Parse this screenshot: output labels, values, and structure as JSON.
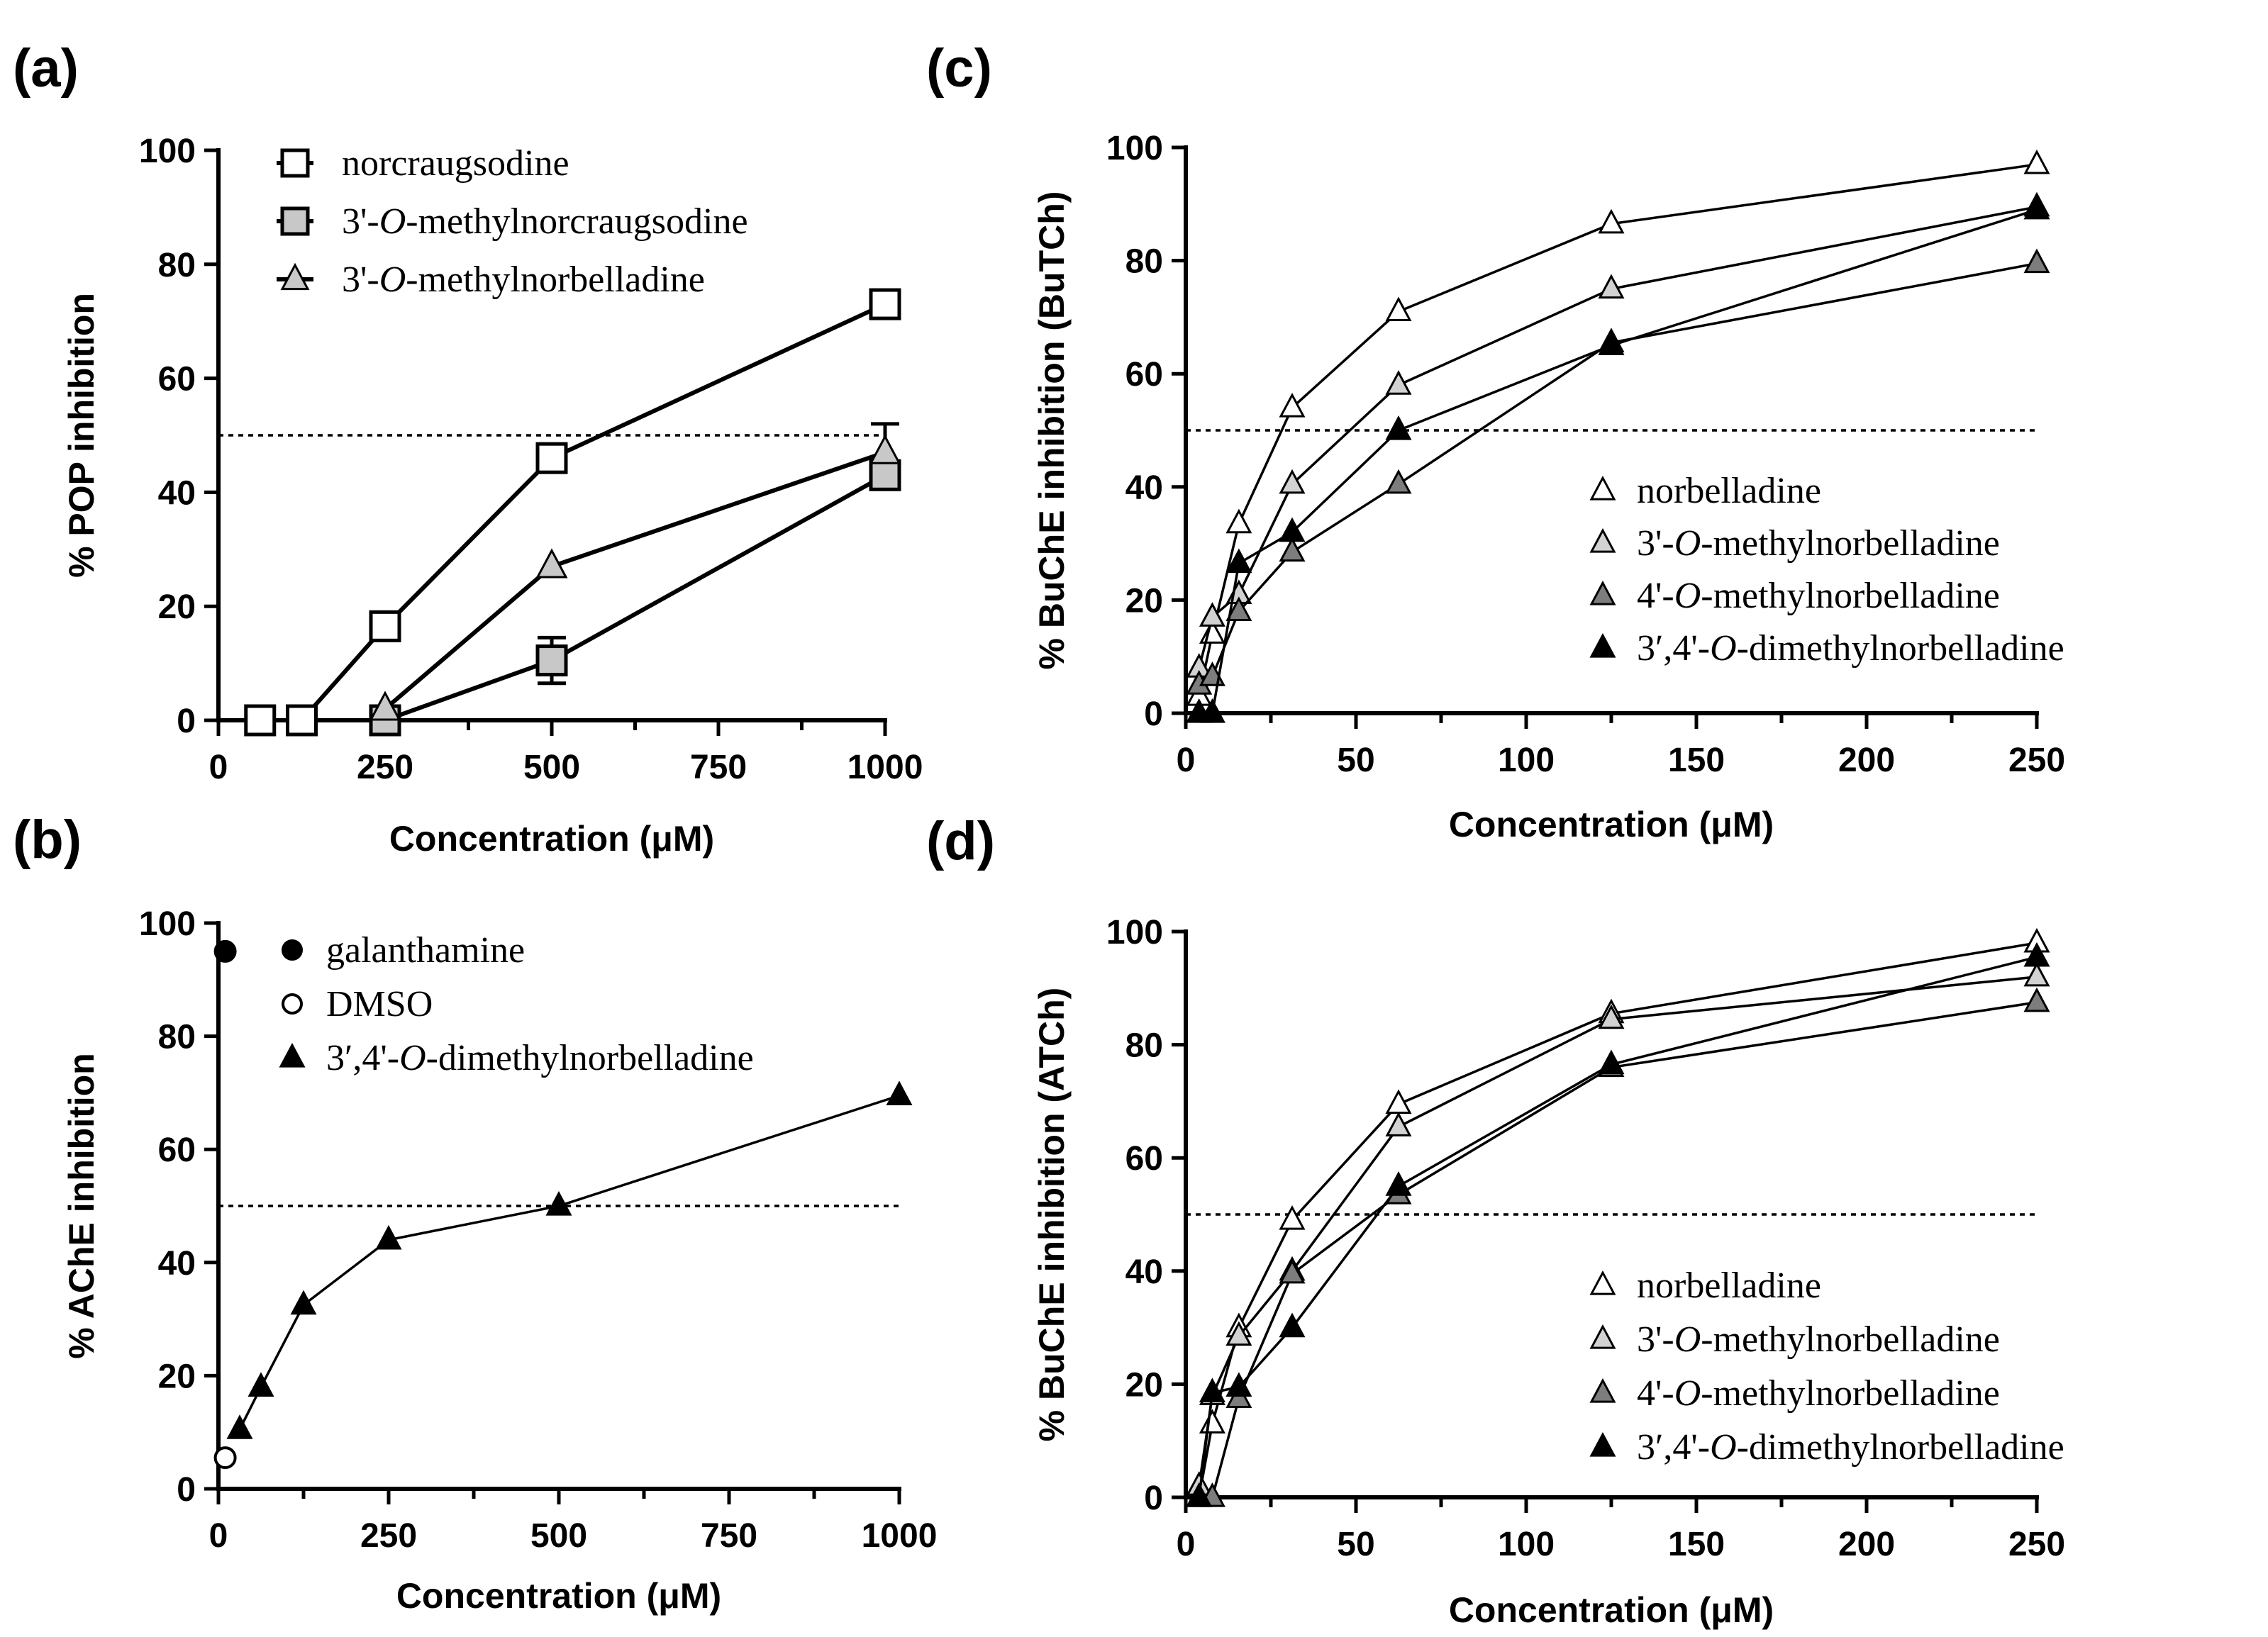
{
  "chart_data": [
    {
      "id": "a",
      "panel_label": "(a)",
      "type": "line",
      "xlabel": "Concentration (μM)",
      "ylabel": "% POP inhibition",
      "xlim": [
        0,
        1000
      ],
      "ylim": [
        0,
        100
      ],
      "xticks": [
        0,
        250,
        500,
        750,
        1000
      ],
      "yticks": [
        0,
        20,
        40,
        60,
        80,
        100
      ],
      "xtick_labels": [
        "0",
        "250",
        "500",
        "750",
        "1000"
      ],
      "ytick_labels": [
        "0",
        "20",
        "40",
        "60",
        "80",
        "100"
      ],
      "reference_line": 50,
      "legend_position": "top-left",
      "series": [
        {
          "name": "norcraugsodine",
          "legend": [
            "norcraugsodine"
          ],
          "marker": "square",
          "fill": "#ffffff",
          "x": [
            62.5,
            125,
            250,
            500,
            1000
          ],
          "y": [
            0,
            0,
            16.5,
            46,
            73
          ],
          "err": [
            0,
            0,
            0,
            0,
            0
          ]
        },
        {
          "name": "3'-O-methylnorcraugsodine",
          "legend": [
            "3'-",
            "O",
            "-methylnorcraugsodine"
          ],
          "marker": "square",
          "fill": "#c8c8c8",
          "x": [
            250,
            500,
            1000
          ],
          "y": [
            0,
            10.5,
            43
          ],
          "err": [
            0,
            4,
            0
          ]
        },
        {
          "name": "3'-O-methylnorbelladine",
          "legend": [
            "3'-",
            "O",
            "-methylnorbelladine"
          ],
          "marker": "triangle",
          "fill": "#c8c8c8",
          "x": [
            250,
            500,
            1000
          ],
          "y": [
            2,
            27,
            47
          ],
          "err": [
            0,
            0,
            5
          ]
        }
      ]
    },
    {
      "id": "b",
      "panel_label": "(b)",
      "type": "line",
      "xlabel": "Concentration (μM)",
      "ylabel": "% AChE inhibition",
      "xlim": [
        0,
        1000
      ],
      "ylim": [
        0,
        100
      ],
      "xticks": [
        0,
        250,
        500,
        750,
        1000
      ],
      "yticks": [
        0,
        20,
        40,
        60,
        80,
        100
      ],
      "xtick_labels": [
        "0",
        "250",
        "500",
        "750",
        "1000"
      ],
      "ytick_labels": [
        "0",
        "20",
        "40",
        "60",
        "80",
        "100"
      ],
      "reference_line": 50,
      "legend_position": "top-left",
      "series": [
        {
          "name": "galanthamine",
          "legend": [
            "galanthamine"
          ],
          "marker": "circle",
          "fill": "#000000",
          "line": false,
          "x": [
            10
          ],
          "y": [
            95
          ]
        },
        {
          "name": "DMSO",
          "legend": [
            "DMSO"
          ],
          "marker": "circle",
          "fill": "#ffffff",
          "line": false,
          "x": [
            10
          ],
          "y": [
            5.5
          ]
        },
        {
          "name": "3′,4'-O-dimethylnorbelladine",
          "legend": [
            "3′,4'-",
            "O",
            "-dimethylnorbelladine"
          ],
          "marker": "triangle",
          "fill": "#000000",
          "x": [
            31.25,
            62.5,
            125,
            250,
            500,
            1000
          ],
          "y": [
            10.5,
            18,
            32.5,
            44,
            50,
            69.5
          ]
        }
      ]
    },
    {
      "id": "c",
      "panel_label": "(c)",
      "type": "line",
      "xlabel": "Concentration (μM)",
      "ylabel": "% BuChE inhibition (BuTCh)",
      "xlim": [
        0,
        250
      ],
      "ylim": [
        0,
        100
      ],
      "xticks": [
        0,
        50,
        100,
        150,
        200,
        250
      ],
      "yticks": [
        0,
        20,
        40,
        60,
        80,
        100
      ],
      "xtick_labels": [
        "0",
        "50",
        "100",
        "150",
        "200",
        "250"
      ],
      "ytick_labels": [
        "0",
        "20",
        "40",
        "60",
        "80",
        "100"
      ],
      "reference_line": 50,
      "legend_position": "bottom-right",
      "series": [
        {
          "name": "norbelladine",
          "legend": [
            "norbelladine"
          ],
          "marker": "triangle",
          "fill": "#ffffff",
          "x": [
            3.9,
            7.8,
            15.6,
            31.25,
            62.5,
            125,
            250
          ],
          "y": [
            3,
            14,
            33.5,
            54,
            71,
            86.5,
            97
          ]
        },
        {
          "name": "3'-O-methylnorbelladine",
          "legend": [
            "3'-",
            "O",
            "-methylnorbelladine"
          ],
          "marker": "triangle",
          "fill": "#d2d2d2",
          "x": [
            3.9,
            7.8,
            15.6,
            31.25,
            62.5,
            125,
            250
          ],
          "y": [
            8,
            17,
            21,
            40.5,
            58,
            75,
            89.5
          ]
        },
        {
          "name": "4'-O-methylnorbelladine",
          "legend": [
            "4'-",
            "O",
            "-methylnorbelladine"
          ],
          "marker": "triangle",
          "fill": "#7d7d7d",
          "x": [
            3.9,
            7.8,
            15.6,
            31.25,
            62.5,
            125,
            250
          ],
          "y": [
            5,
            6.5,
            18,
            28.5,
            40.5,
            65.5,
            79.5
          ]
        },
        {
          "name": "3′,4'-O-dimethylnorbelladine",
          "legend": [
            "3′,4'-",
            "O",
            "-dimethylnorbelladine"
          ],
          "marker": "triangle",
          "fill": "#000000",
          "x": [
            3.9,
            7.8,
            15.6,
            31.25,
            62.5,
            125,
            250
          ],
          "y": [
            0,
            0,
            26.5,
            32,
            50,
            65,
            89
          ]
        }
      ]
    },
    {
      "id": "d",
      "panel_label": "(d)",
      "type": "line",
      "xlabel": "Concentration (μM)",
      "ylabel": "% BuChE inhibition (ATCh)",
      "xlim": [
        0,
        250
      ],
      "ylim": [
        0,
        100
      ],
      "xticks": [
        0,
        50,
        100,
        150,
        200,
        250
      ],
      "yticks": [
        0,
        20,
        40,
        60,
        80,
        100
      ],
      "xtick_labels": [
        "0",
        "50",
        "100",
        "150",
        "200",
        "250"
      ],
      "ytick_labels": [
        "0",
        "20",
        "40",
        "60",
        "80",
        "100"
      ],
      "reference_line": 50,
      "legend_position": "bottom-right",
      "series": [
        {
          "name": "norbelladine",
          "legend": [
            "norbelladine"
          ],
          "marker": "triangle",
          "fill": "#ffffff",
          "x": [
            3.9,
            7.8,
            15.6,
            31.25,
            62.5,
            125,
            250
          ],
          "y": [
            0,
            13,
            30,
            49,
            69.5,
            85.5,
            98
          ]
        },
        {
          "name": "3'-O-methylnorbelladine",
          "legend": [
            "3'-",
            "O",
            "-methylnorbelladine"
          ],
          "marker": "triangle",
          "fill": "#d2d2d2",
          "x": [
            3.9,
            7.8,
            15.6,
            31.25,
            62.5,
            125,
            250
          ],
          "y": [
            2,
            18,
            28.5,
            40,
            65.5,
            84.5,
            92
          ]
        },
        {
          "name": "4'-O-methylnorbelladine",
          "legend": [
            "4'-",
            "O",
            "-methylnorbelladine"
          ],
          "marker": "triangle",
          "fill": "#7d7d7d",
          "x": [
            3.9,
            7.8,
            15.6,
            31.25,
            62.5,
            125,
            250
          ],
          "y": [
            0,
            0,
            17.5,
            39.5,
            53.5,
            76,
            87.5
          ]
        },
        {
          "name": "3′,4'-O-dimethylnorbelladine",
          "legend": [
            "3′,4'-",
            "O",
            "-dimethylnorbelladine"
          ],
          "marker": "triangle",
          "fill": "#000000",
          "x": [
            3.9,
            7.8,
            15.6,
            31.25,
            62.5,
            125,
            250
          ],
          "y": [
            0,
            18.5,
            19.5,
            30,
            55,
            76.5,
            95.5
          ]
        }
      ]
    }
  ]
}
